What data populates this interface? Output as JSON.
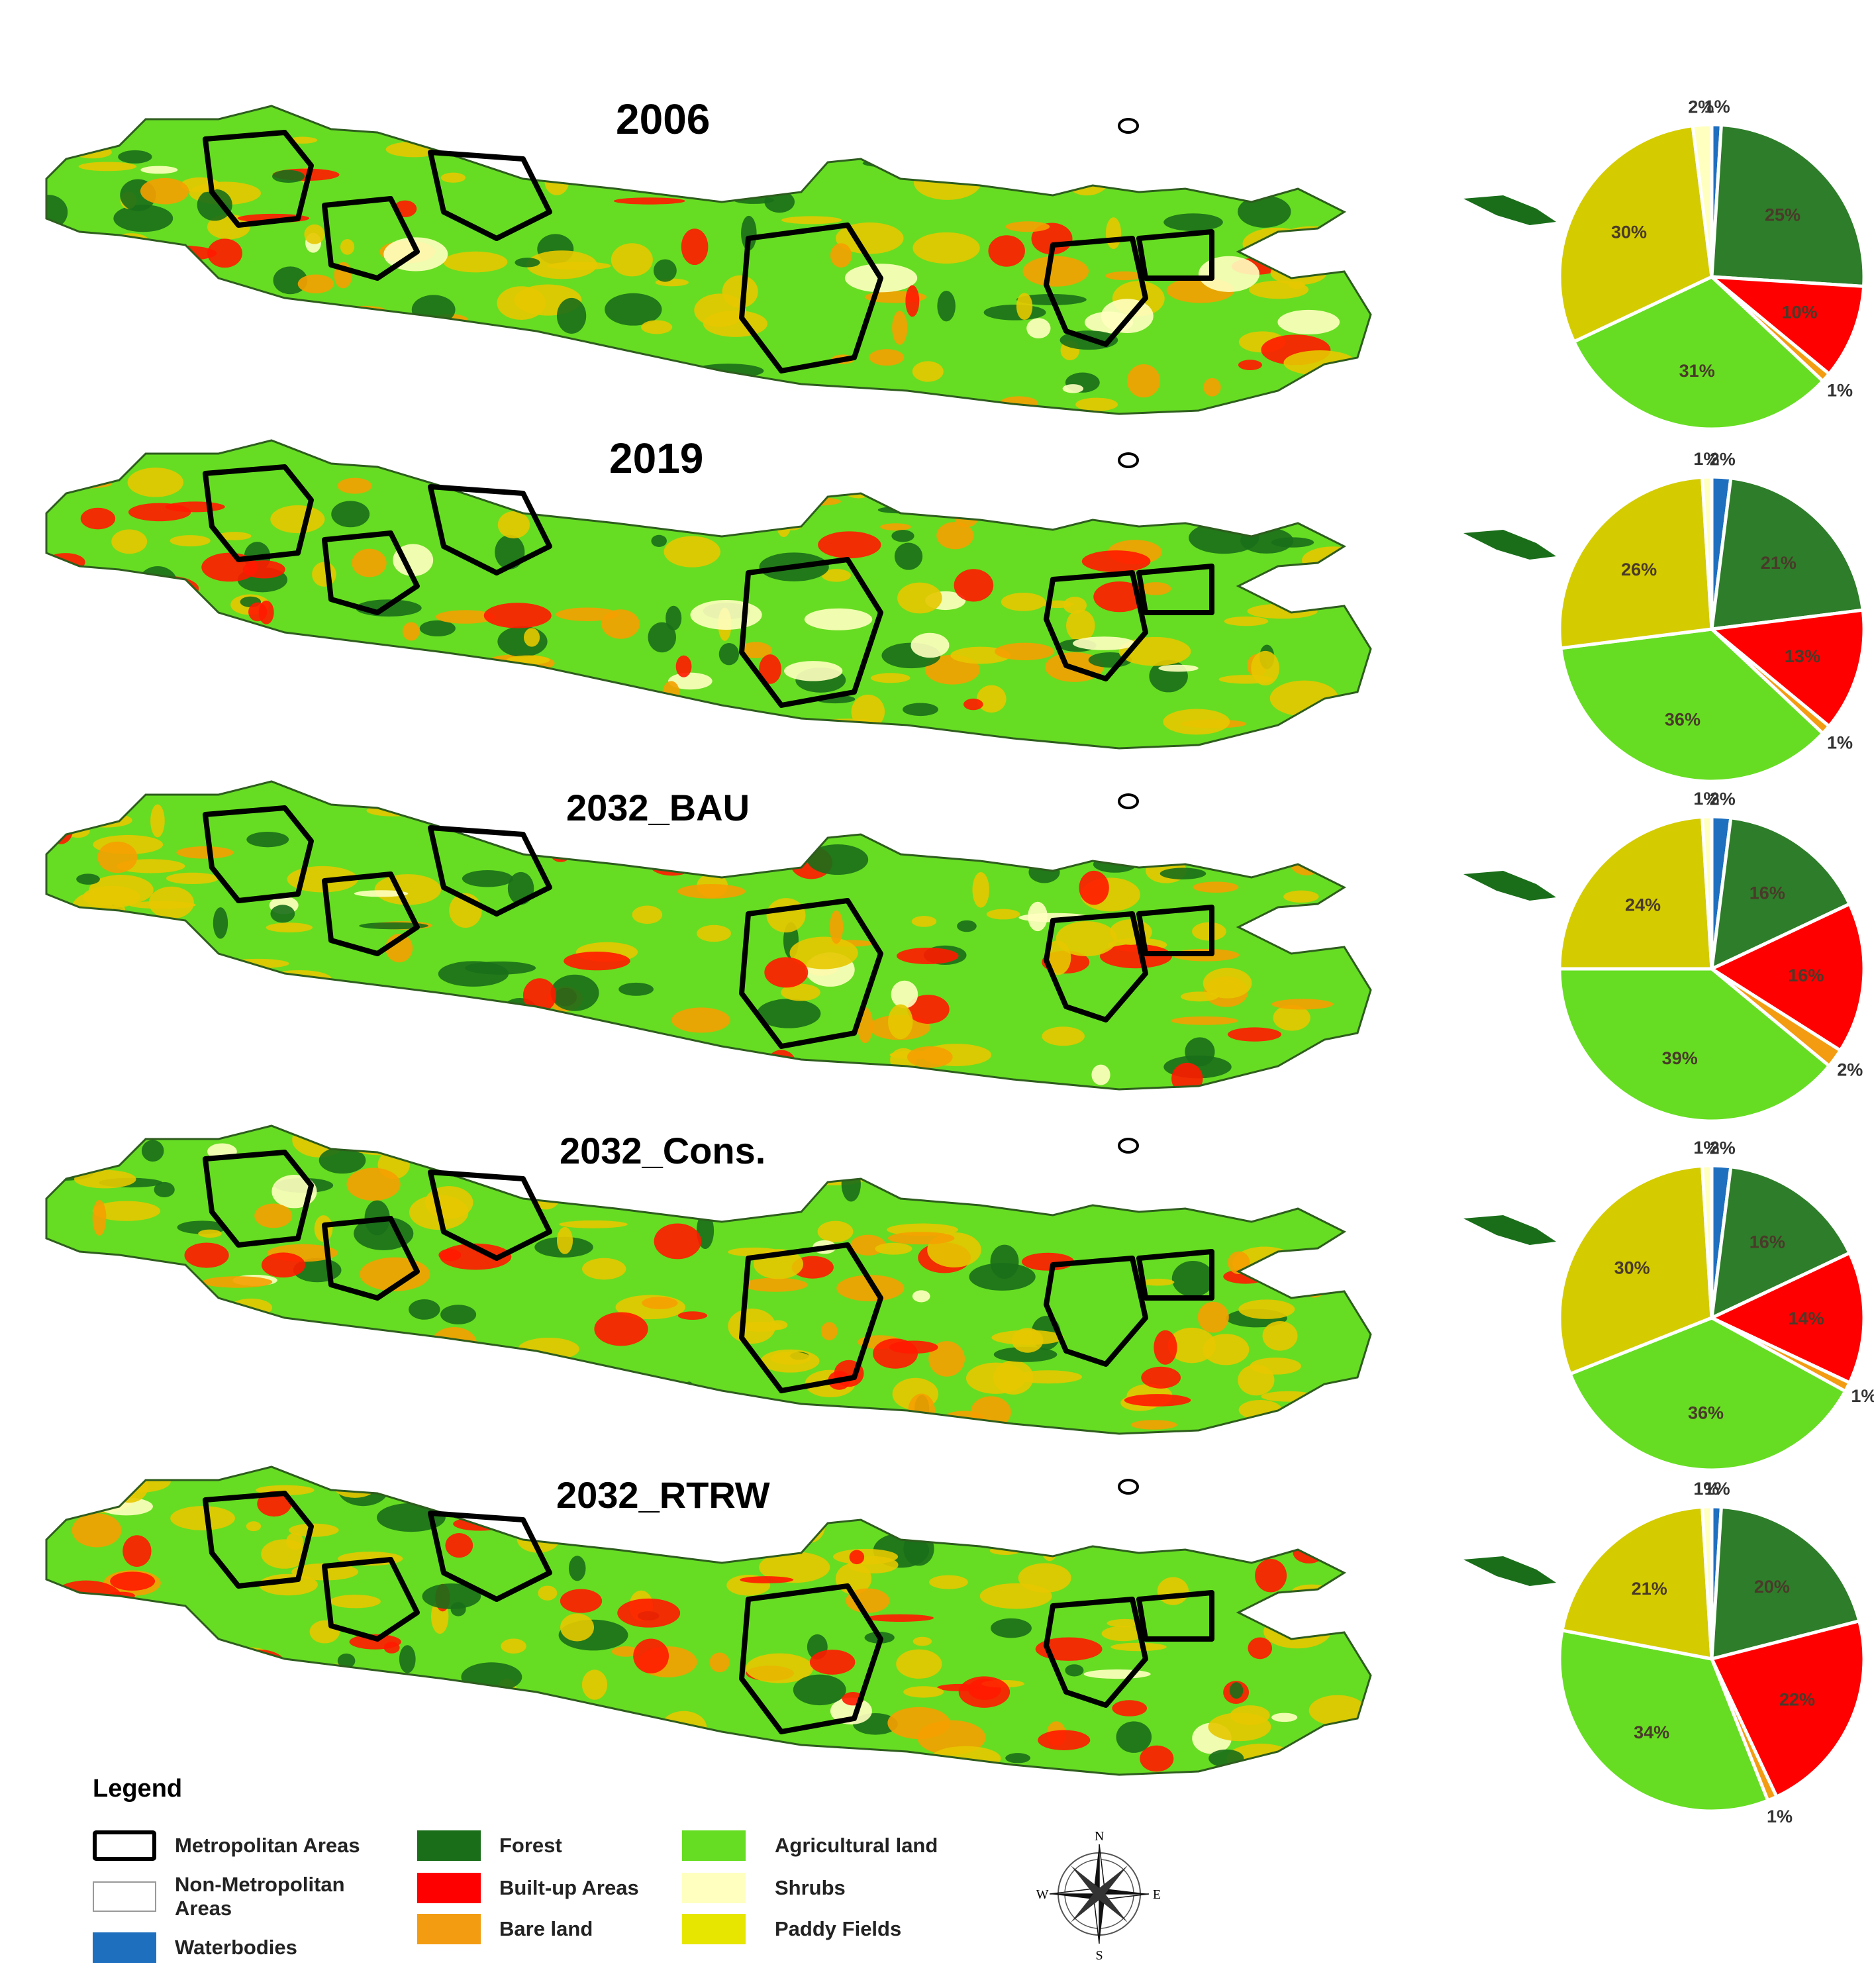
{
  "maps": [
    {
      "title": "2006"
    },
    {
      "title": "2019"
    },
    {
      "title": "2032_BAU"
    },
    {
      "title": "2032_Cons."
    },
    {
      "title": "2032_RTRW"
    }
  ],
  "classes": [
    {
      "key": "waterbodies",
      "name": "Waterbodies",
      "color": "#1f6fbf"
    },
    {
      "key": "forest",
      "name": "Forest",
      "color": "#2e7d2a"
    },
    {
      "key": "builtup",
      "name": "Built-up Areas",
      "color": "#ff0000"
    },
    {
      "key": "bareland",
      "name": "Bare land",
      "color": "#f39c12"
    },
    {
      "key": "agri",
      "name": "Agricultural land",
      "color": "#66dd22"
    },
    {
      "key": "shrubs",
      "name": "Shrubs",
      "color": "#ffffc0"
    },
    {
      "key": "paddy",
      "name": "Paddy Fields",
      "color": "#d4cc00"
    }
  ],
  "chart_data": [
    {
      "type": "pie",
      "title": "",
      "slices": [
        {
          "class": "waterbodies",
          "value": 1,
          "label": "1%"
        },
        {
          "class": "forest",
          "value": 25,
          "label": "25%"
        },
        {
          "class": "builtup",
          "value": 10,
          "label": "10%"
        },
        {
          "class": "bareland",
          "value": 1,
          "label": "1%"
        },
        {
          "class": "agri",
          "value": 31,
          "label": "31%"
        },
        {
          "class": "paddy",
          "value": 30,
          "label": "30%"
        },
        {
          "class": "shrubs",
          "value": 2,
          "label": "2%"
        }
      ]
    },
    {
      "type": "pie",
      "title": "",
      "slices": [
        {
          "class": "waterbodies",
          "value": 2,
          "label": "2%"
        },
        {
          "class": "forest",
          "value": 21,
          "label": "21%"
        },
        {
          "class": "builtup",
          "value": 13,
          "label": "13%"
        },
        {
          "class": "bareland",
          "value": 1,
          "label": "1%"
        },
        {
          "class": "agri",
          "value": 36,
          "label": "36%"
        },
        {
          "class": "paddy",
          "value": 26,
          "label": "26%"
        },
        {
          "class": "shrubs",
          "value": 1,
          "label": "1%"
        }
      ]
    },
    {
      "type": "pie",
      "title": "",
      "slices": [
        {
          "class": "waterbodies",
          "value": 2,
          "label": "2%"
        },
        {
          "class": "forest",
          "value": 16,
          "label": "16%"
        },
        {
          "class": "builtup",
          "value": 16,
          "label": "16%"
        },
        {
          "class": "bareland",
          "value": 2,
          "label": "2%"
        },
        {
          "class": "agri",
          "value": 39,
          "label": "39%"
        },
        {
          "class": "paddy",
          "value": 24,
          "label": "24%"
        },
        {
          "class": "shrubs",
          "value": 1,
          "label": "1%"
        }
      ]
    },
    {
      "type": "pie",
      "title": "",
      "slices": [
        {
          "class": "waterbodies",
          "value": 2,
          "label": "2%"
        },
        {
          "class": "forest",
          "value": 16,
          "label": "16%"
        },
        {
          "class": "builtup",
          "value": 14,
          "label": "14%"
        },
        {
          "class": "bareland",
          "value": 1,
          "label": "1%"
        },
        {
          "class": "agri",
          "value": 36,
          "label": "36%"
        },
        {
          "class": "paddy",
          "value": 30,
          "label": "30%"
        },
        {
          "class": "shrubs",
          "value": 1,
          "label": "1%"
        }
      ]
    },
    {
      "type": "pie",
      "title": "",
      "slices": [
        {
          "class": "waterbodies",
          "value": 1,
          "label": "1%"
        },
        {
          "class": "forest",
          "value": 20,
          "label": "20%"
        },
        {
          "class": "builtup",
          "value": 22,
          "label": "22%"
        },
        {
          "class": "bareland",
          "value": 1,
          "label": "1%"
        },
        {
          "class": "agri",
          "value": 34,
          "label": "34%"
        },
        {
          "class": "paddy",
          "value": 21,
          "label": "21%"
        },
        {
          "class": "shrubs",
          "value": 1,
          "label": "1%"
        }
      ]
    }
  ],
  "legend": {
    "title": "Legend",
    "items": [
      {
        "label": "Metropolitan Areas",
        "swatch": "outline-thick"
      },
      {
        "label": "Non-Metropolitan Areas",
        "swatch": "outline-thin"
      },
      {
        "label": "Waterbodies",
        "color": "#1f6fbf"
      },
      {
        "label": "Forest",
        "color": "#1a6e1a"
      },
      {
        "label": "Built-up Areas",
        "color": "#ff0000"
      },
      {
        "label": "Bare land",
        "color": "#f39c12"
      },
      {
        "label": "Agricultural land",
        "color": "#66dd22"
      },
      {
        "label": "Shrubs",
        "color": "#ffffc0"
      },
      {
        "label": "Paddy Fields",
        "color": "#e6e600"
      }
    ]
  },
  "compass": {
    "n": "N",
    "s": "S",
    "e": "E",
    "w": "W"
  }
}
